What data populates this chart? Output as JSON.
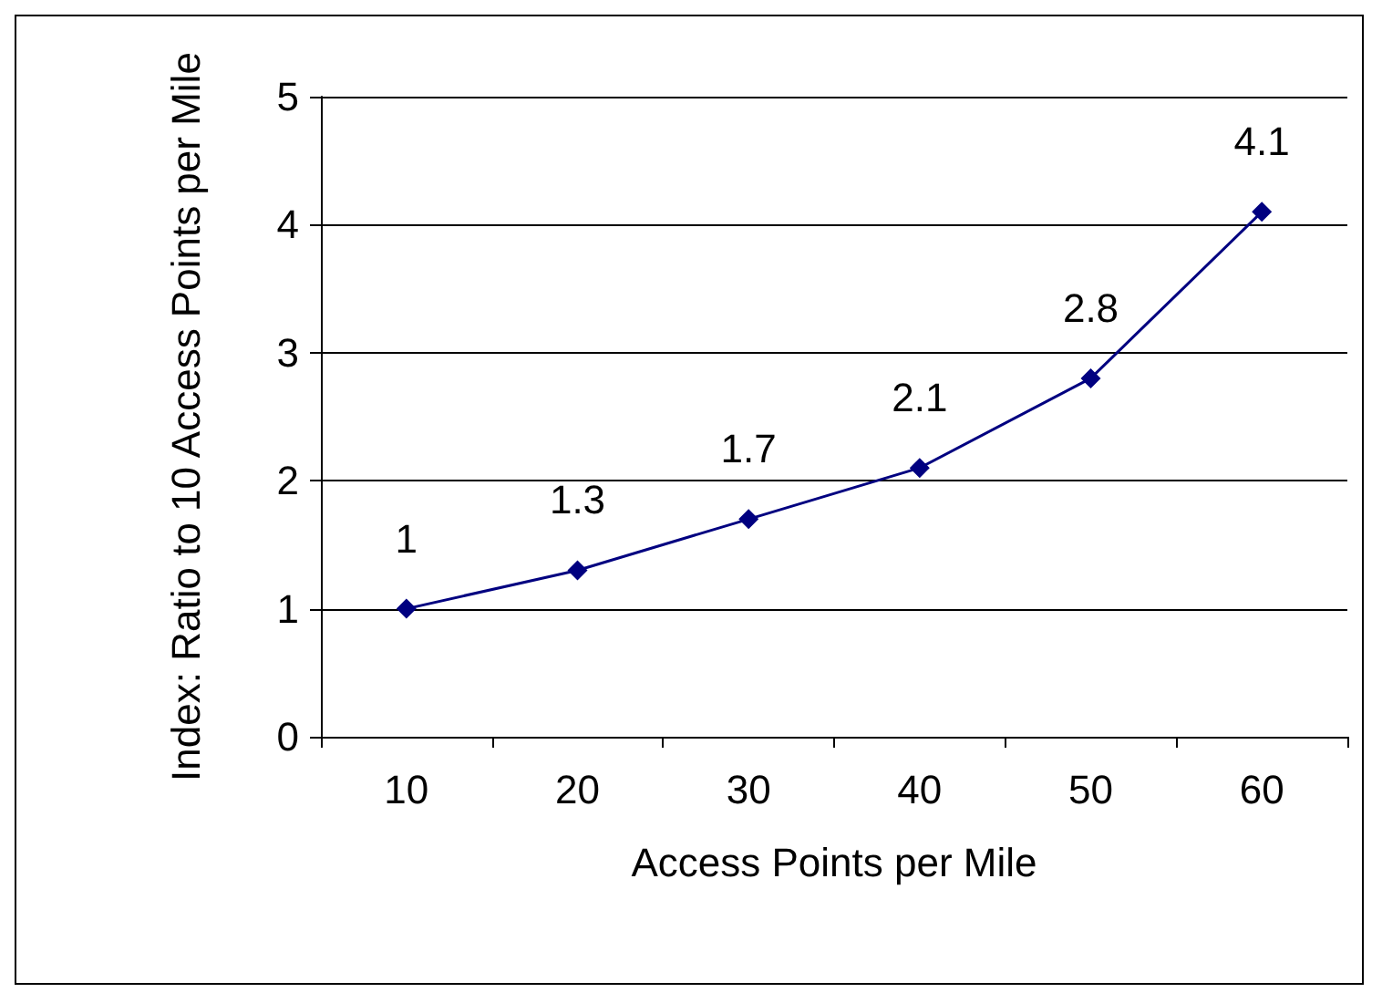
{
  "chart_data": {
    "type": "line",
    "xlabel": "Access Points per Mile",
    "ylabel": "Index: Ratio to 10 Access Points per Mile",
    "categories": [
      "10",
      "20",
      "30",
      "40",
      "50",
      "60"
    ],
    "series": [
      {
        "color": "#000080",
        "values": [
          1,
          1.3,
          1.7,
          2.1,
          2.8,
          4.1
        ]
      }
    ],
    "ylim": [
      0,
      5
    ],
    "yticks": [
      0,
      1,
      2,
      3,
      4,
      5
    ],
    "grid": "y",
    "marker": "diamond",
    "line_style": "solid",
    "data_labels": true
  }
}
